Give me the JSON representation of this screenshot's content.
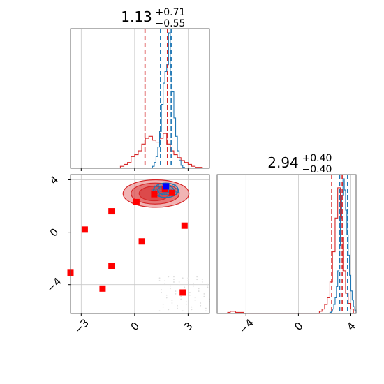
{
  "colors": {
    "red": "#d62728",
    "blue": "#1f77b4",
    "marker_red": "#ff0000",
    "marker_blue": "#0000ff",
    "grid": "#c8c8c8"
  },
  "chart_data": [
    {
      "panel": "top-left marginal",
      "type": "histogram",
      "title": {
        "value": "1.13",
        "sup": "+0.71",
        "sub": "−0.55"
      },
      "xlim": [
        -3.6,
        4.2
      ],
      "grid": true,
      "xtick_values": [
        -3,
        0,
        3
      ],
      "quantile_lines": {
        "red": [
          0.58,
          1.84
        ],
        "blue": [
          1.45,
          2.05
        ]
      },
      "series": [
        {
          "color": "red",
          "bin_edges": [
            -0.8,
            -0.6,
            -0.4,
            -0.2,
            0.0,
            0.2,
            0.4,
            0.6,
            0.8,
            1.0,
            1.2,
            1.4,
            1.6,
            1.8,
            2.0,
            2.2,
            2.4,
            2.6,
            2.8,
            3.0,
            3.2,
            3.4,
            3.6,
            3.8
          ],
          "heights": [
            2,
            4,
            6,
            12,
            14,
            18,
            25,
            31,
            33,
            29,
            27,
            31,
            36,
            25,
            18,
            14,
            11,
            8,
            6,
            4,
            2,
            1,
            1
          ]
        },
        {
          "color": "blue",
          "bin_edges": [
            1.0,
            1.1,
            1.2,
            1.3,
            1.4,
            1.5,
            1.6,
            1.7,
            1.8,
            1.9,
            2.0,
            2.1,
            2.2,
            2.3,
            2.4,
            2.5,
            2.6,
            2.7,
            2.8
          ],
          "heights": [
            2,
            6,
            12,
            22,
            38,
            66,
            88,
            100,
            107,
            140,
            96,
            79,
            52,
            33,
            18,
            8,
            3,
            1
          ]
        }
      ]
    },
    {
      "panel": "bottom-left joint",
      "type": "scatter",
      "xlim": [
        -3.6,
        4.2
      ],
      "ylim": [
        -6.2,
        4.4
      ],
      "grid": true,
      "xtick_values": [
        -3,
        0,
        3
      ],
      "ytick_values": [
        -4,
        0,
        4
      ],
      "red_markers": [
        [
          -1.3,
          1.6
        ],
        [
          0.1,
          2.3
        ],
        [
          1.1,
          2.9
        ],
        [
          1.7,
          3.3
        ],
        [
          2.1,
          3.0
        ],
        [
          2.8,
          0.5
        ],
        [
          0.4,
          -0.7
        ],
        [
          -2.8,
          0.2
        ],
        [
          -1.3,
          -2.6
        ],
        [
          -1.8,
          -4.3
        ],
        [
          -3.6,
          -3.1
        ],
        [
          2.7,
          -4.6
        ]
      ],
      "blue_markers": [
        [
          1.75,
          3.5
        ]
      ],
      "red_contours": [
        {
          "cx": 1.2,
          "cy": 2.95,
          "rx": 1.85,
          "ry": 1.05,
          "fill_opacity": 0.35
        },
        {
          "cx": 1.15,
          "cy": 2.95,
          "rx": 1.35,
          "ry": 0.8,
          "fill_opacity": 0.45
        },
        {
          "cx": 1.1,
          "cy": 2.95,
          "rx": 0.85,
          "ry": 0.55,
          "fill_opacity": 0.55
        }
      ],
      "blue_contours": [
        {
          "cx": 1.75,
          "cy": 3.2,
          "rx": 0.7,
          "ry": 0.55
        },
        {
          "cx": 1.75,
          "cy": 3.2,
          "rx": 0.45,
          "ry": 0.35
        }
      ]
    },
    {
      "panel": "bottom-right marginal",
      "type": "histogram",
      "title": {
        "value": "2.94",
        "sup": "+0.40",
        "sub": "−0.40"
      },
      "xlim": [
        -6.2,
        4.4
      ],
      "grid": true,
      "xtick_values": [
        -4,
        0,
        4
      ],
      "quantile_lines": {
        "red": [
          2.54,
          3.34
        ],
        "blue": [
          3.15,
          3.75
        ]
      },
      "series": [
        {
          "color": "red",
          "bin_edges": [
            -5.4,
            -5.2,
            -5.0,
            -4.8,
            -4.6,
            -4.4,
            -4.2,
            1.6,
            1.8,
            2.0,
            2.2,
            2.4,
            2.6,
            2.8,
            3.0,
            3.2,
            3.4,
            3.6,
            3.8,
            4.0,
            4.2
          ],
          "heights": [
            1,
            2,
            2,
            1,
            1,
            1,
            0,
            2,
            4,
            8,
            14,
            28,
            55,
            85,
            112,
            68,
            38,
            18,
            9,
            4
          ]
        },
        {
          "color": "blue",
          "bin_edges": [
            2.4,
            2.5,
            2.6,
            2.7,
            2.8,
            2.9,
            3.0,
            3.1,
            3.2,
            3.3,
            3.4,
            3.5,
            3.6,
            3.7,
            3.8,
            3.9,
            4.0,
            4.1,
            4.2,
            4.3,
            4.4
          ],
          "heights": [
            1,
            2,
            4,
            8,
            14,
            24,
            38,
            60,
            85,
            105,
            120,
            110,
            92,
            70,
            52,
            34,
            20,
            12,
            6,
            3
          ]
        }
      ]
    }
  ]
}
